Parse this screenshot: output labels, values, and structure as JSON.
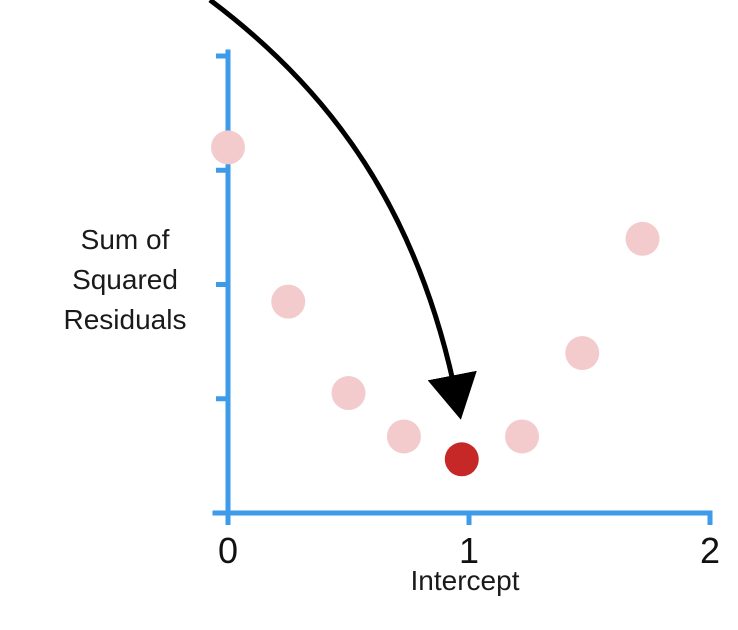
{
  "chart_data": {
    "type": "scatter",
    "xlabel": "Intercept",
    "ylabel_lines": [
      "Sum of",
      "Squared",
      "Residuals"
    ],
    "xlim": [
      0,
      2
    ],
    "ylim": [
      0,
      4
    ],
    "x_ticks": [
      0,
      1,
      2
    ],
    "x_tick_labels": [
      "0",
      "1",
      "2"
    ],
    "y_ticks": [
      1,
      2,
      3,
      4
    ],
    "grid": false,
    "points": [
      {
        "x": 0.0,
        "y": 3.2,
        "highlight": false
      },
      {
        "x": 0.25,
        "y": 1.85,
        "highlight": false
      },
      {
        "x": 0.5,
        "y": 1.05,
        "highlight": false
      },
      {
        "x": 0.73,
        "y": 0.67,
        "highlight": false
      },
      {
        "x": 0.97,
        "y": 0.47,
        "highlight": true
      },
      {
        "x": 1.22,
        "y": 0.67,
        "highlight": false
      },
      {
        "x": 1.47,
        "y": 1.4,
        "highlight": false
      },
      {
        "x": 1.72,
        "y": 2.4,
        "highlight": false
      }
    ],
    "annotation": {
      "type": "arrow",
      "target_point_index": 4
    },
    "colors": {
      "axis": "#3d9be9",
      "point": "#f3cbcc",
      "highlight": "#c62828",
      "arrow": "#000000",
      "text": "#111111"
    }
  }
}
